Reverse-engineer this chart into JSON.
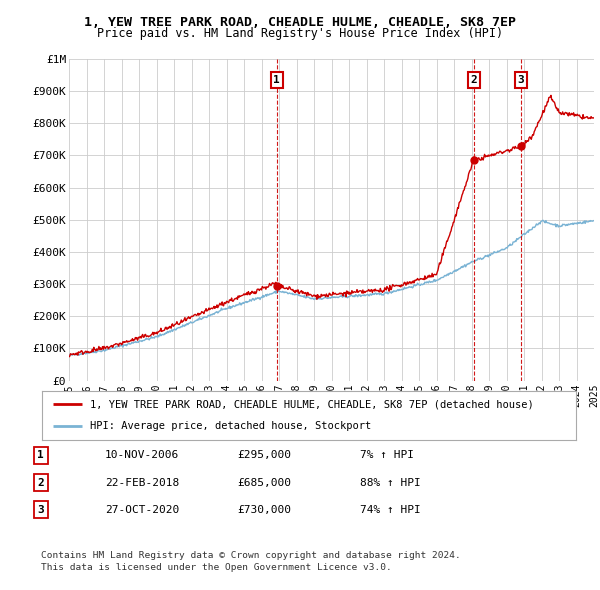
{
  "title_line1": "1, YEW TREE PARK ROAD, CHEADLE HULME, CHEADLE, SK8 7EP",
  "title_line2": "Price paid vs. HM Land Registry's House Price Index (HPI)",
  "plot_bg_color": "#ffffff",
  "fig_bg_color": "#ffffff",
  "grid_color": "#cccccc",
  "hpi_color": "#7ab3d4",
  "price_color": "#cc0000",
  "purchases": [
    {
      "date_x": 2006.87,
      "price": 295000,
      "label": "1"
    },
    {
      "date_x": 2018.14,
      "price": 685000,
      "label": "2"
    },
    {
      "date_x": 2020.83,
      "price": 730000,
      "label": "3"
    }
  ],
  "legend_label_red": "1, YEW TREE PARK ROAD, CHEADLE HULME, CHEADLE, SK8 7EP (detached house)",
  "legend_label_blue": "HPI: Average price, detached house, Stockport",
  "table_entries": [
    {
      "num": "1",
      "date": "10-NOV-2006",
      "price": "£295,000",
      "hpi": "7% ↑ HPI"
    },
    {
      "num": "2",
      "date": "22-FEB-2018",
      "price": "£685,000",
      "hpi": "88% ↑ HPI"
    },
    {
      "num": "3",
      "date": "27-OCT-2020",
      "price": "£730,000",
      "hpi": "74% ↑ HPI"
    }
  ],
  "footnote_line1": "Contains HM Land Registry data © Crown copyright and database right 2024.",
  "footnote_line2": "This data is licensed under the Open Government Licence v3.0.",
  "ylim": [
    0,
    1000000
  ],
  "yticks": [
    0,
    100000,
    200000,
    300000,
    400000,
    500000,
    600000,
    700000,
    800000,
    900000,
    1000000
  ],
  "ytick_labels": [
    "£0",
    "£100K",
    "£200K",
    "£300K",
    "£400K",
    "£500K",
    "£600K",
    "£700K",
    "£800K",
    "£900K",
    "£1M"
  ],
  "xmin": 1995,
  "xmax": 2025
}
